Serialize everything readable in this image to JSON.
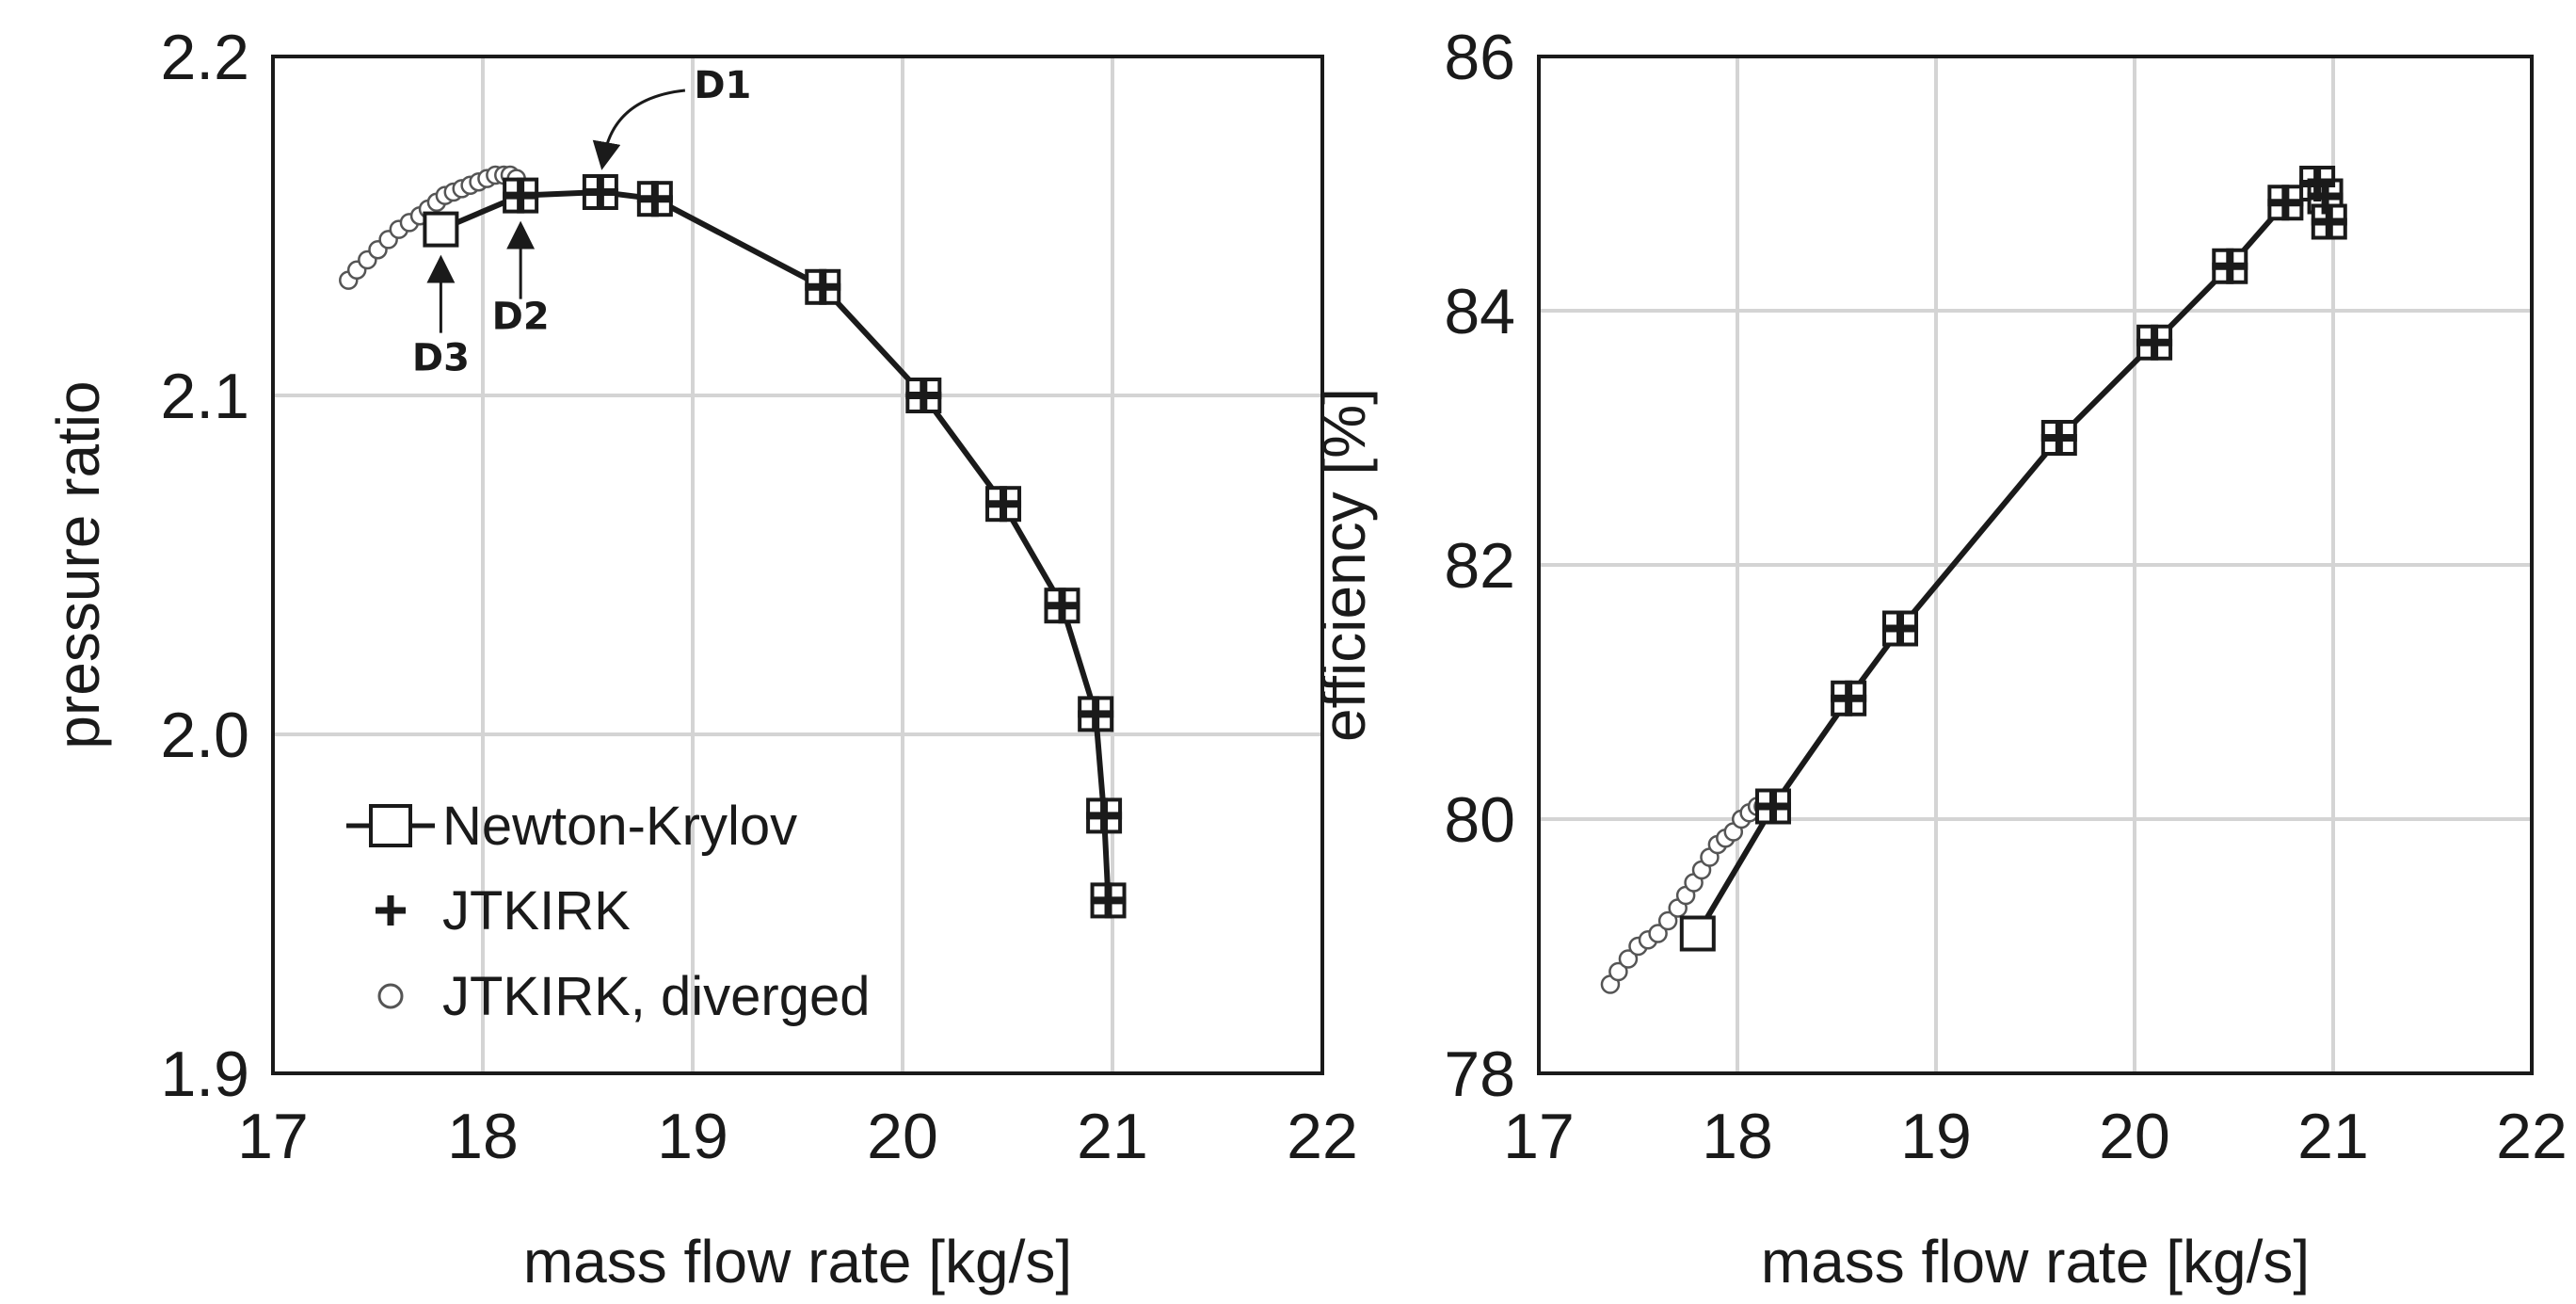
{
  "chart_data": [
    {
      "type": "line",
      "xlabel": "mass flow rate [kg/s]",
      "ylabel": "pressure ratio",
      "xlim": [
        17,
        22
      ],
      "ylim": [
        1.9,
        2.2
      ],
      "xticks": [
        "17",
        "18",
        "19",
        "20",
        "21",
        "22"
      ],
      "yticks": [
        "1.9",
        "2.0",
        "2.1",
        "2.2"
      ],
      "grid": true,
      "legend_position": "bottom-left",
      "legend": [
        {
          "label": "Newton-Krylov",
          "marker": "open-square-with-line"
        },
        {
          "label": "JTKIRK",
          "marker": "plus"
        },
        {
          "label": "JTKIRK, diverged",
          "marker": "open-circle"
        }
      ],
      "series": [
        {
          "name": "Newton-Krylov",
          "x": [
            17.8,
            18.18,
            18.56,
            18.82,
            19.62,
            20.1,
            20.48,
            20.76,
            20.92,
            20.96,
            20.98
          ],
          "y": [
            2.149,
            2.159,
            2.16,
            2.158,
            2.132,
            2.1,
            2.068,
            2.038,
            2.006,
            1.976,
            1.951
          ]
        },
        {
          "name": "JTKIRK",
          "x": [
            18.18,
            18.56,
            18.82,
            19.62,
            20.1,
            20.48,
            20.76,
            20.92,
            20.96,
            20.98
          ],
          "y": [
            2.159,
            2.16,
            2.158,
            2.132,
            2.1,
            2.068,
            2.038,
            2.006,
            1.976,
            1.951
          ]
        },
        {
          "name": "JTKIRK, diverged",
          "x": [
            17.36,
            17.4,
            17.45,
            17.5,
            17.55,
            17.6,
            17.65,
            17.7,
            17.74,
            17.78,
            17.82,
            17.86,
            17.9,
            17.94,
            17.98,
            18.02,
            18.06,
            18.1,
            18.13,
            18.16
          ],
          "y": [
            2.134,
            2.137,
            2.14,
            2.143,
            2.146,
            2.149,
            2.151,
            2.153,
            2.155,
            2.157,
            2.159,
            2.16,
            2.161,
            2.162,
            2.163,
            2.164,
            2.165,
            2.165,
            2.165,
            2.164
          ]
        }
      ],
      "annotations": [
        {
          "text": "D1",
          "x": 18.56,
          "y": 2.16
        },
        {
          "text": "D2",
          "x": 18.18,
          "y": 2.159
        },
        {
          "text": "D3",
          "x": 17.8,
          "y": 2.149
        }
      ]
    },
    {
      "type": "line",
      "xlabel": "mass flow rate [kg/s]",
      "ylabel": "efficiency [%]",
      "xlim": [
        17,
        22
      ],
      "ylim": [
        78,
        86
      ],
      "xticks": [
        "17",
        "18",
        "19",
        "20",
        "21",
        "22"
      ],
      "yticks": [
        "78",
        "80",
        "82",
        "84",
        "86"
      ],
      "grid": true,
      "series": [
        {
          "name": "Newton-Krylov",
          "x": [
            17.8,
            18.18,
            18.56,
            18.82,
            19.62,
            20.1,
            20.48,
            20.76,
            20.92,
            20.96,
            20.98
          ],
          "y": [
            79.1,
            80.1,
            80.95,
            81.5,
            83.0,
            83.75,
            84.35,
            84.85,
            85.0,
            84.9,
            84.7
          ]
        },
        {
          "name": "JTKIRK",
          "x": [
            18.18,
            18.56,
            18.82,
            19.62,
            20.1,
            20.48,
            20.76,
            20.92,
            20.96,
            20.98
          ],
          "y": [
            80.1,
            80.95,
            81.5,
            83.0,
            83.75,
            84.35,
            84.85,
            85.0,
            84.9,
            84.7
          ]
        },
        {
          "name": "JTKIRK, diverged",
          "x": [
            17.36,
            17.4,
            17.45,
            17.5,
            17.55,
            17.6,
            17.65,
            17.7,
            17.74,
            17.78,
            17.82,
            17.86,
            17.9,
            17.94,
            17.98,
            18.02,
            18.06,
            18.1,
            18.13,
            18.16
          ],
          "y": [
            78.7,
            78.8,
            78.9,
            79.0,
            79.05,
            79.1,
            79.2,
            79.3,
            79.4,
            79.5,
            79.6,
            79.7,
            79.8,
            79.85,
            79.9,
            80.0,
            80.05,
            80.1,
            80.1,
            80.15
          ]
        }
      ]
    }
  ]
}
